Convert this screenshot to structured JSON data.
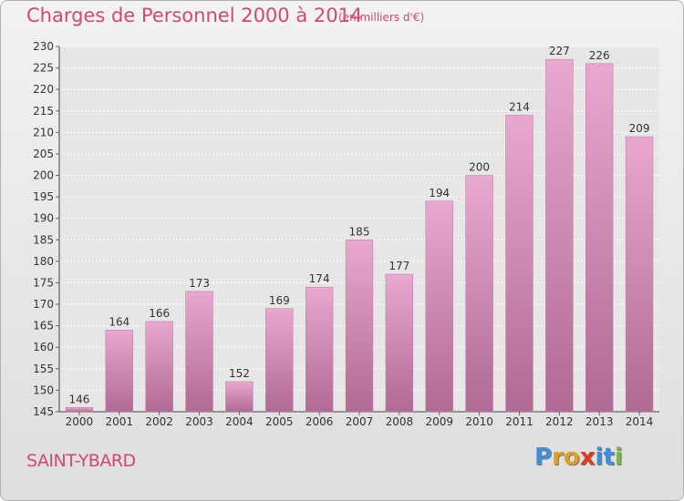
{
  "header": {
    "title": "Charges de Personnel 2000 à 2014",
    "subtitle": "(en milliers d'€)"
  },
  "footer": {
    "town": "SAINT-YBARD",
    "logo_letters": [
      "P",
      "r",
      "o",
      "x",
      "i",
      "t",
      "i"
    ],
    "logo_colors": [
      "#3d8fd6",
      "#e0a020",
      "#e0a020",
      "#e23a1e",
      "#3d8fd6",
      "#3d8fd6",
      "#7ab648"
    ]
  },
  "colors": {
    "bar_top": "#e8a8d0",
    "bar_bottom": "#b06a94",
    "title": "#d04a6e"
  },
  "chart_data": {
    "type": "bar",
    "categories": [
      "2000",
      "2001",
      "2002",
      "2003",
      "2004",
      "2005",
      "2006",
      "2007",
      "2008",
      "2009",
      "2010",
      "2011",
      "2012",
      "2013",
      "2014"
    ],
    "values": [
      146,
      164,
      166,
      173,
      152,
      169,
      174,
      185,
      177,
      194,
      200,
      214,
      227,
      226,
      209
    ],
    "ylim": [
      145,
      230
    ],
    "ytick_step": 5,
    "grid": true,
    "legend": "none"
  }
}
